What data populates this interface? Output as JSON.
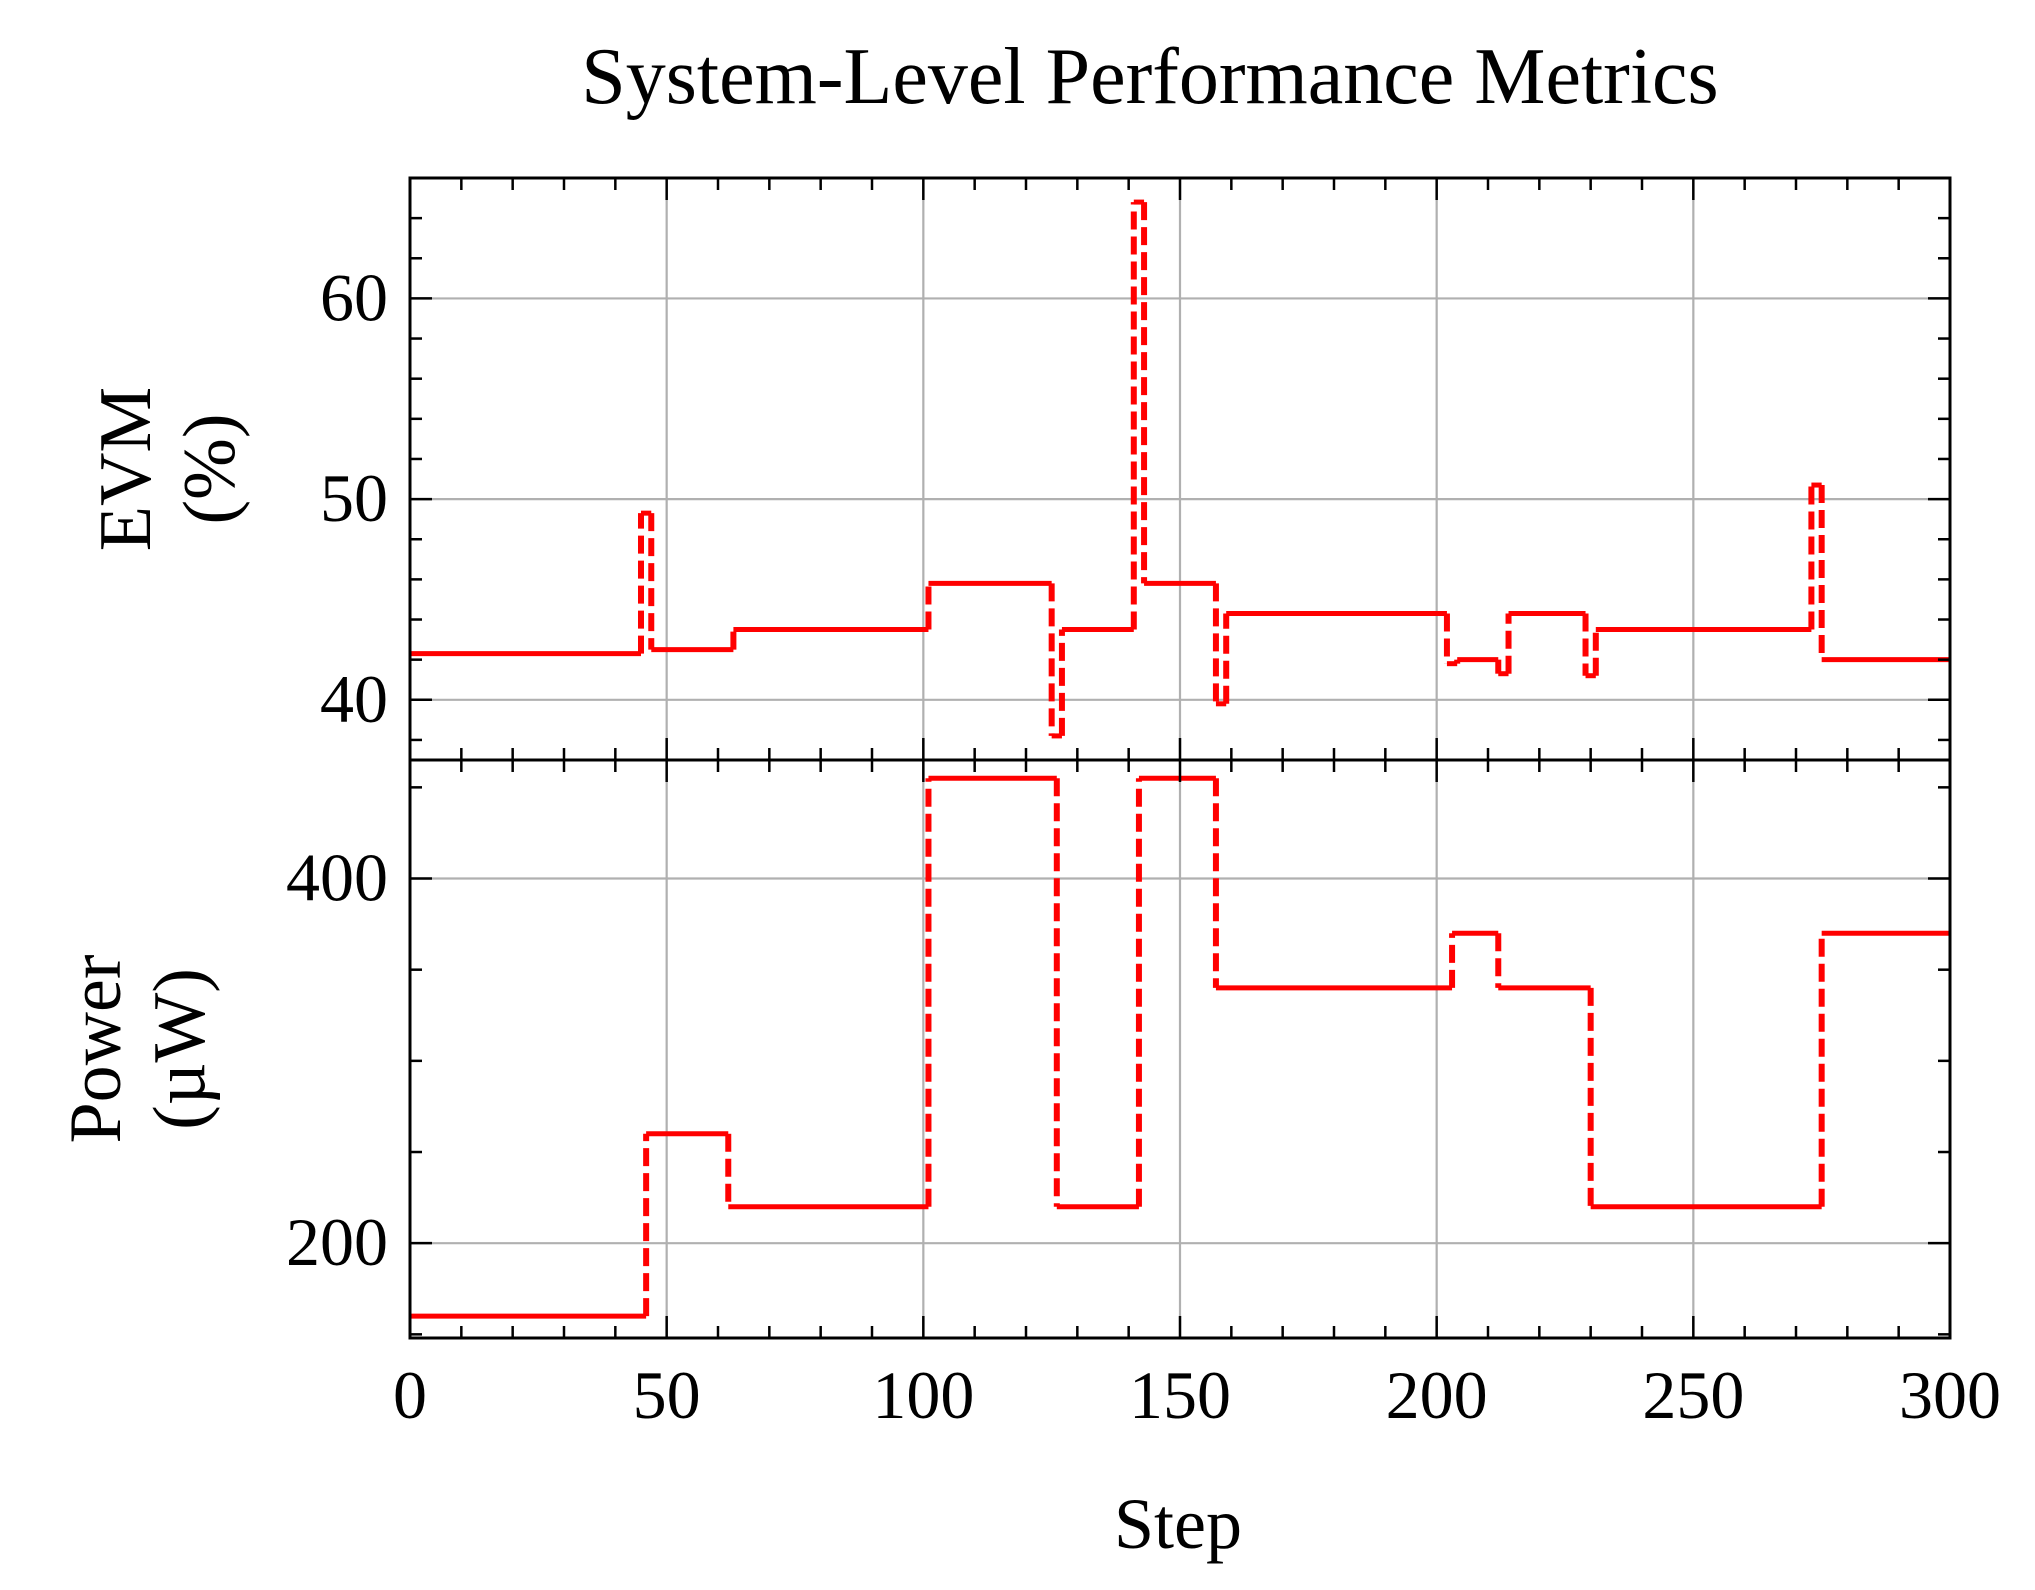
{
  "chart_data": {
    "type": "line",
    "title": "System-Level Performance Metrics",
    "xlabel": "Step",
    "xlim": [
      0,
      300
    ],
    "x_ticks": [
      0,
      50,
      100,
      150,
      200,
      250,
      300
    ],
    "x_minor_step": 10,
    "grid": true,
    "shared_x": true,
    "line_color": "#ff0000",
    "grid_color": "#b0b0b0",
    "line_style": "step (post); vertical transitions dashed",
    "panels": [
      {
        "id": "evm",
        "ylabel": [
          "EVM",
          "(%)"
        ],
        "ylim": [
          37,
          66
        ],
        "y_ticks": [
          40,
          50,
          60
        ],
        "y_minor_step": 2,
        "series": [
          {
            "x": [
              0,
              45,
              47,
              63,
              101,
              125,
              127,
              141,
              143,
              157,
              159,
              202,
              204,
              212,
              214,
              229,
              231,
              273,
              275,
              300
            ],
            "y": [
              42.3,
              49.3,
              42.5,
              43.5,
              45.8,
              38.2,
              43.5,
              64.8,
              45.8,
              39.8,
              44.3,
              41.8,
              42.0,
              41.3,
              44.3,
              41.2,
              43.5,
              50.7,
              42.0,
              42.0
            ]
          }
        ]
      },
      {
        "id": "power",
        "ylabel": [
          "Power",
          "(µW)"
        ],
        "ylim": [
          148,
          465
        ],
        "y_ticks": [
          200,
          400
        ],
        "y_minor_step": 50,
        "series": [
          {
            "x": [
              0,
              46,
              62,
              101,
              126,
              142,
              157,
              203,
              212,
              230,
              275,
              300
            ],
            "y": [
              160,
              260,
              220,
              455,
              220,
              455,
              340,
              370,
              340,
              220,
              370,
              370
            ]
          }
        ]
      }
    ]
  }
}
